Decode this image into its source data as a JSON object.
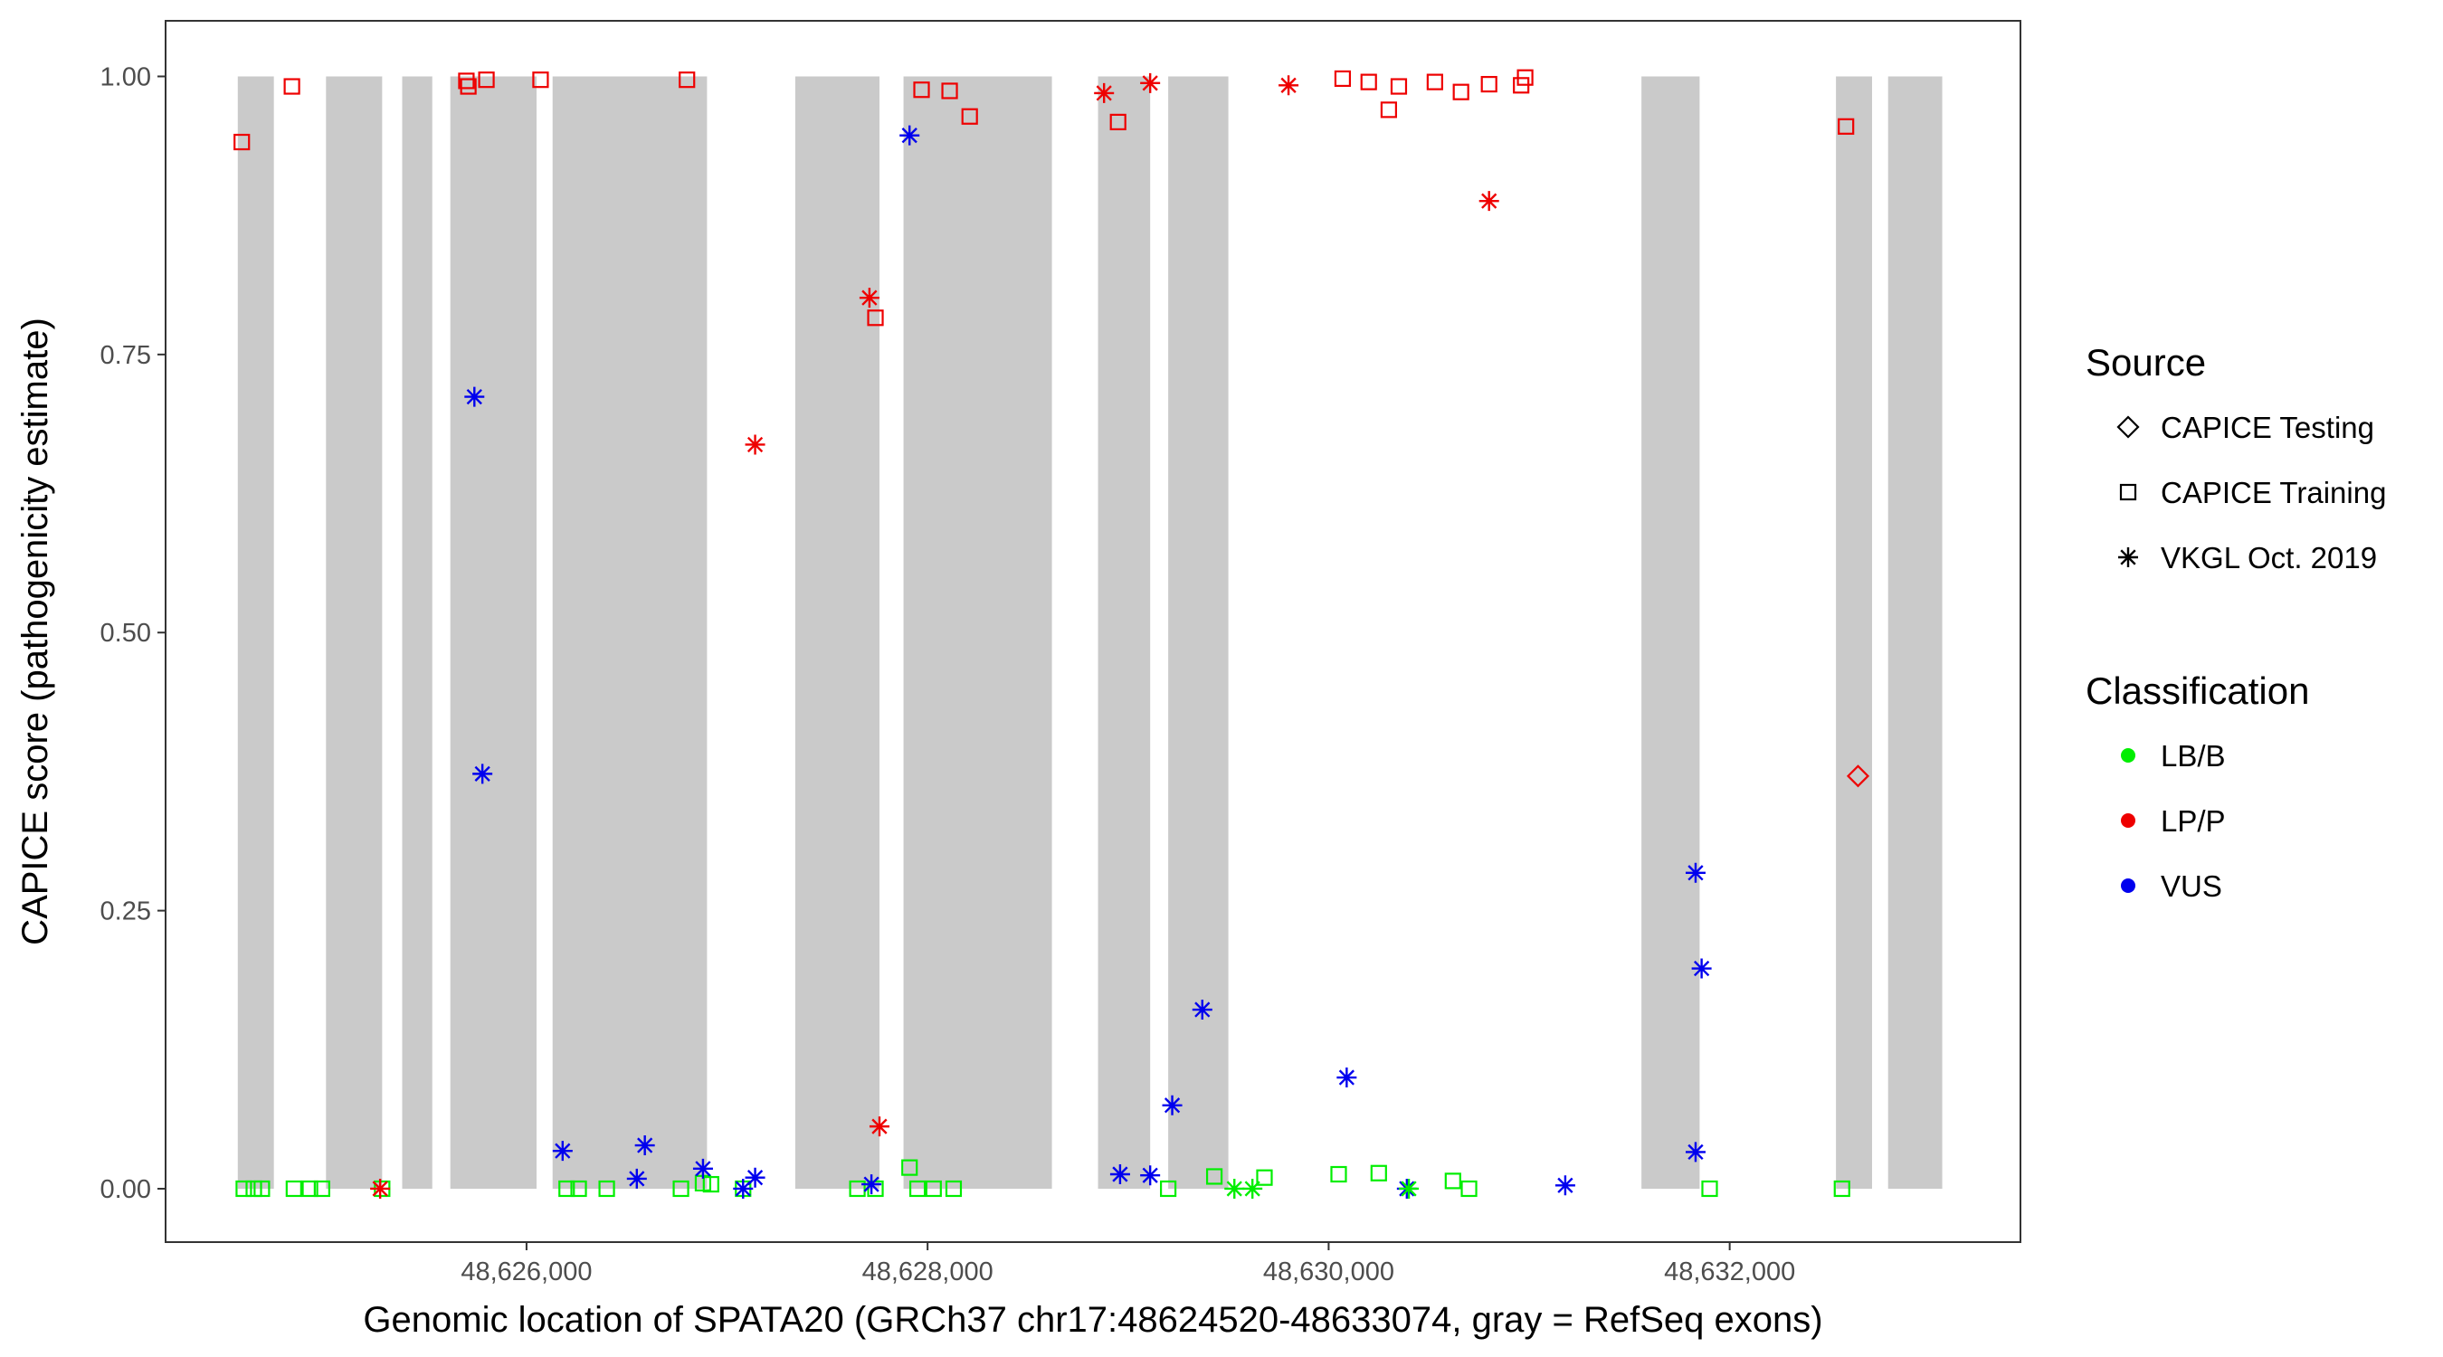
{
  "chart_data": {
    "type": "scatter",
    "title": "",
    "xlabel": "Genomic location of SPATA20 (GRCh37 chr17:48624520-48633074, gray = RefSeq exons)",
    "ylabel": "CAPICE score (pathogenicity estimate)",
    "xlim": [
      48624200,
      48633450
    ],
    "ylim": [
      -0.048,
      1.05
    ],
    "x_ticks": [
      48626000,
      48628000,
      48630000,
      48632000
    ],
    "x_tick_labels": [
      "48,626,000",
      "48,628,000",
      "48,630,000",
      "48,632,000"
    ],
    "y_ticks": [
      0,
      0.25,
      0.5,
      0.75,
      1.0
    ],
    "y_tick_labels": [
      "0.00",
      "0.25",
      "0.50",
      "0.75",
      "1.00"
    ],
    "grid": false,
    "legend_position": "right",
    "colors": {
      "LB/B": "#00ee00",
      "LP/P": "#ee0000",
      "VUS": "#0000ee",
      "exon": "#cacaca"
    },
    "exons": [
      [
        48624560,
        48624740
      ],
      [
        48625000,
        48625280
      ],
      [
        48625380,
        48625530
      ],
      [
        48625620,
        48626050
      ],
      [
        48626130,
        48626900
      ],
      [
        48627340,
        48627760
      ],
      [
        48627880,
        48628620
      ],
      [
        48628850,
        48629110
      ],
      [
        48629200,
        48629500
      ],
      [
        48631560,
        48631850
      ],
      [
        48632530,
        48632710
      ],
      [
        48632790,
        48633060
      ]
    ],
    "legend": {
      "source_title": "Source",
      "source_items": [
        {
          "label": "CAPICE Testing",
          "shape": "diamond"
        },
        {
          "label": "CAPICE Training",
          "shape": "square"
        },
        {
          "label": "VKGL Oct. 2019",
          "shape": "star"
        }
      ],
      "class_title": "Classification",
      "class_items": [
        {
          "label": "LB/B",
          "color": "#00ee00"
        },
        {
          "label": "LP/P",
          "color": "#ee0000"
        },
        {
          "label": "VUS",
          "color": "#0000ee"
        }
      ]
    },
    "series": [
      {
        "source": "CAPICE Training",
        "classification": "LP/P",
        "points": [
          [
            48624580,
            0.941
          ],
          [
            48624830,
            0.991
          ],
          [
            48625700,
            0.996
          ],
          [
            48625710,
            0.991
          ],
          [
            48625800,
            0.997
          ],
          [
            48626070,
            0.997
          ],
          [
            48626800,
            0.997
          ],
          [
            48627740,
            0.783
          ],
          [
            48627970,
            0.988
          ],
          [
            48628110,
            0.987
          ],
          [
            48628210,
            0.964
          ],
          [
            48628950,
            0.959
          ],
          [
            48630070,
            0.998
          ],
          [
            48630200,
            0.995
          ],
          [
            48630300,
            0.97
          ],
          [
            48630350,
            0.991
          ],
          [
            48630530,
            0.995
          ],
          [
            48630660,
            0.986
          ],
          [
            48630800,
            0.993
          ],
          [
            48630960,
            0.992
          ],
          [
            48630980,
            0.999
          ],
          [
            48632580,
            0.955
          ]
        ]
      },
      {
        "source": "CAPICE Training",
        "classification": "LB/B",
        "points": [
          [
            48624590,
            0.0
          ],
          [
            48624640,
            0.0
          ],
          [
            48624680,
            0.0
          ],
          [
            48624840,
            0.0
          ],
          [
            48624920,
            0.0
          ],
          [
            48624980,
            0.0
          ],
          [
            48625280,
            0.0
          ],
          [
            48626200,
            0.0
          ],
          [
            48626260,
            0.0
          ],
          [
            48626400,
            0.0
          ],
          [
            48626770,
            0.0
          ],
          [
            48626880,
            0.005
          ],
          [
            48626920,
            0.004
          ],
          [
            48627080,
            0.0
          ],
          [
            48627650,
            0.0
          ],
          [
            48627740,
            0.0
          ],
          [
            48627910,
            0.019
          ],
          [
            48627950,
            0.0
          ],
          [
            48628030,
            0.0
          ],
          [
            48628130,
            0.0
          ],
          [
            48629200,
            0.0
          ],
          [
            48629430,
            0.011
          ],
          [
            48629680,
            0.01
          ],
          [
            48630050,
            0.013
          ],
          [
            48630250,
            0.014
          ],
          [
            48630620,
            0.007
          ],
          [
            48630700,
            0.0
          ],
          [
            48631900,
            0.0
          ],
          [
            48632560,
            0.0
          ]
        ]
      },
      {
        "source": "CAPICE Testing",
        "classification": "LP/P",
        "points": [
          [
            48632640,
            0.371
          ]
        ]
      },
      {
        "source": "VKGL Oct. 2019",
        "classification": "LP/P",
        "points": [
          [
            48625270,
            0.0
          ],
          [
            48627140,
            0.669
          ],
          [
            48627710,
            0.801
          ],
          [
            48627760,
            0.056
          ],
          [
            48628880,
            0.985
          ],
          [
            48629110,
            0.994
          ],
          [
            48629800,
            0.992
          ],
          [
            48630800,
            0.888
          ]
        ]
      },
      {
        "source": "VKGL Oct. 2019",
        "classification": "VUS",
        "points": [
          [
            48625740,
            0.712
          ],
          [
            48625780,
            0.373
          ],
          [
            48626180,
            0.034
          ],
          [
            48626550,
            0.009
          ],
          [
            48626590,
            0.039
          ],
          [
            48626880,
            0.018
          ],
          [
            48627080,
            0.0
          ],
          [
            48627140,
            0.01
          ],
          [
            48627720,
            0.004
          ],
          [
            48627910,
            0.947
          ],
          [
            48628960,
            0.013
          ],
          [
            48629110,
            0.012
          ],
          [
            48629220,
            0.075
          ],
          [
            48629370,
            0.161
          ],
          [
            48630090,
            0.1
          ],
          [
            48630390,
            0.0
          ],
          [
            48631180,
            0.003
          ],
          [
            48631830,
            0.284
          ],
          [
            48631860,
            0.198
          ],
          [
            48631830,
            0.033
          ]
        ]
      },
      {
        "source": "VKGL Oct. 2019",
        "classification": "LB/B",
        "points": [
          [
            48629530,
            0.0
          ],
          [
            48629620,
            0.0
          ],
          [
            48630400,
            0.0
          ]
        ]
      }
    ]
  }
}
